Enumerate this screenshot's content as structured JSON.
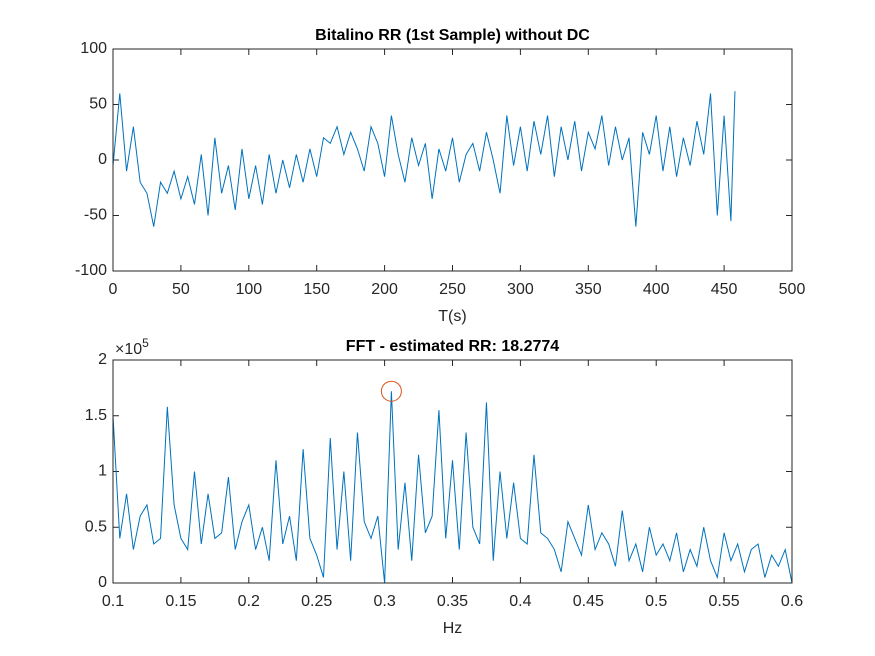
{
  "chart_data": [
    {
      "type": "line",
      "title": "Bitalino RR (1st Sample) without DC",
      "xlabel": "T(s)",
      "color": "#0072bd",
      "xlim": [
        0,
        500
      ],
      "xticks": [
        0,
        50,
        100,
        150,
        200,
        250,
        300,
        350,
        400,
        450,
        500
      ],
      "ylim": [
        -100,
        100
      ],
      "yticks": [
        -100,
        -50,
        0,
        50,
        100
      ],
      "x": [
        0,
        5,
        10,
        15,
        20,
        25,
        30,
        35,
        40,
        45,
        50,
        55,
        60,
        65,
        70,
        75,
        80,
        85,
        90,
        95,
        100,
        105,
        110,
        115,
        120,
        125,
        130,
        135,
        140,
        145,
        150,
        155,
        160,
        165,
        170,
        175,
        180,
        185,
        190,
        195,
        200,
        205,
        210,
        215,
        220,
        225,
        230,
        235,
        240,
        245,
        250,
        255,
        260,
        265,
        270,
        275,
        280,
        285,
        290,
        295,
        300,
        305,
        310,
        315,
        320,
        325,
        330,
        335,
        340,
        345,
        350,
        355,
        360,
        365,
        370,
        375,
        380,
        385,
        390,
        395,
        400,
        405,
        410,
        415,
        420,
        425,
        430,
        435,
        440,
        445,
        450,
        455,
        458
      ],
      "values": [
        -5,
        60,
        -10,
        30,
        -20,
        -30,
        -60,
        -20,
        -30,
        -10,
        -35,
        -15,
        -40,
        5,
        -50,
        20,
        -30,
        -5,
        -45,
        10,
        -35,
        -5,
        -40,
        5,
        -30,
        0,
        -25,
        5,
        -20,
        10,
        -15,
        20,
        15,
        30,
        5,
        25,
        10,
        -10,
        30,
        15,
        -15,
        40,
        5,
        -20,
        20,
        -5,
        15,
        -35,
        10,
        -10,
        20,
        -20,
        5,
        15,
        -10,
        25,
        0,
        -30,
        40,
        -5,
        30,
        -10,
        35,
        5,
        40,
        -15,
        30,
        0,
        35,
        -10,
        25,
        10,
        40,
        -5,
        30,
        0,
        20,
        -60,
        25,
        5,
        40,
        -10,
        30,
        -15,
        20,
        -5,
        35,
        5,
        60,
        -50,
        40,
        -55,
        62
      ]
    },
    {
      "type": "line",
      "title": "FFT - estimated RR: 18.2774",
      "xlabel": "Hz",
      "color": "#0072bd",
      "y_multiplier": "×10",
      "y_multiplier_exponent": "5",
      "xlim": [
        0.1,
        0.6
      ],
      "xticks": [
        0.1,
        0.15,
        0.2,
        0.25,
        0.3,
        0.35,
        0.4,
        0.45,
        0.5,
        0.55,
        0.6
      ],
      "ylim": [
        0,
        200000
      ],
      "yticks": [
        {
          "value": 0,
          "label": "0"
        },
        {
          "value": 50000,
          "label": "0.5"
        },
        {
          "value": 100000,
          "label": "1"
        },
        {
          "value": 150000,
          "label": "1.5"
        },
        {
          "value": 200000,
          "label": "2"
        }
      ],
      "x": [
        0.1,
        0.105,
        0.11,
        0.115,
        0.12,
        0.125,
        0.13,
        0.135,
        0.14,
        0.145,
        0.15,
        0.155,
        0.16,
        0.165,
        0.17,
        0.175,
        0.18,
        0.185,
        0.19,
        0.195,
        0.2,
        0.205,
        0.21,
        0.215,
        0.22,
        0.225,
        0.23,
        0.235,
        0.24,
        0.245,
        0.25,
        0.255,
        0.26,
        0.265,
        0.27,
        0.275,
        0.28,
        0.285,
        0.29,
        0.295,
        0.3,
        0.305,
        0.31,
        0.315,
        0.32,
        0.325,
        0.33,
        0.335,
        0.34,
        0.345,
        0.35,
        0.355,
        0.36,
        0.365,
        0.37,
        0.375,
        0.38,
        0.385,
        0.39,
        0.395,
        0.4,
        0.405,
        0.41,
        0.415,
        0.42,
        0.425,
        0.43,
        0.435,
        0.44,
        0.445,
        0.45,
        0.455,
        0.46,
        0.465,
        0.47,
        0.475,
        0.48,
        0.485,
        0.49,
        0.495,
        0.5,
        0.505,
        0.51,
        0.515,
        0.52,
        0.525,
        0.53,
        0.535,
        0.54,
        0.545,
        0.55,
        0.555,
        0.56,
        0.565,
        0.57,
        0.575,
        0.58,
        0.585,
        0.59,
        0.595,
        0.6
      ],
      "values": [
        150000,
        40000,
        80000,
        30000,
        60000,
        70000,
        35000,
        40000,
        158000,
        70000,
        40000,
        30000,
        100000,
        35000,
        80000,
        40000,
        45000,
        95000,
        30000,
        55000,
        70000,
        30000,
        50000,
        20000,
        110000,
        35000,
        60000,
        20000,
        120000,
        40000,
        25000,
        5000,
        130000,
        30000,
        100000,
        20000,
        135000,
        55000,
        40000,
        60000,
        0,
        172000,
        30000,
        90000,
        20000,
        115000,
        45000,
        60000,
        155000,
        40000,
        110000,
        30000,
        135000,
        50000,
        35000,
        162000,
        20000,
        100000,
        40000,
        90000,
        40000,
        35000,
        115000,
        45000,
        40000,
        30000,
        10000,
        55000,
        40000,
        25000,
        70000,
        30000,
        45000,
        35000,
        15000,
        65000,
        20000,
        35000,
        10000,
        50000,
        25000,
        35000,
        20000,
        45000,
        10000,
        30000,
        15000,
        50000,
        20000,
        5000,
        45000,
        20000,
        35000,
        10000,
        30000,
        35000,
        5000,
        25000,
        15000,
        30000,
        0
      ],
      "markers": [
        {
          "x": 0.305,
          "y": 172000,
          "color": "#d95319"
        }
      ]
    }
  ]
}
